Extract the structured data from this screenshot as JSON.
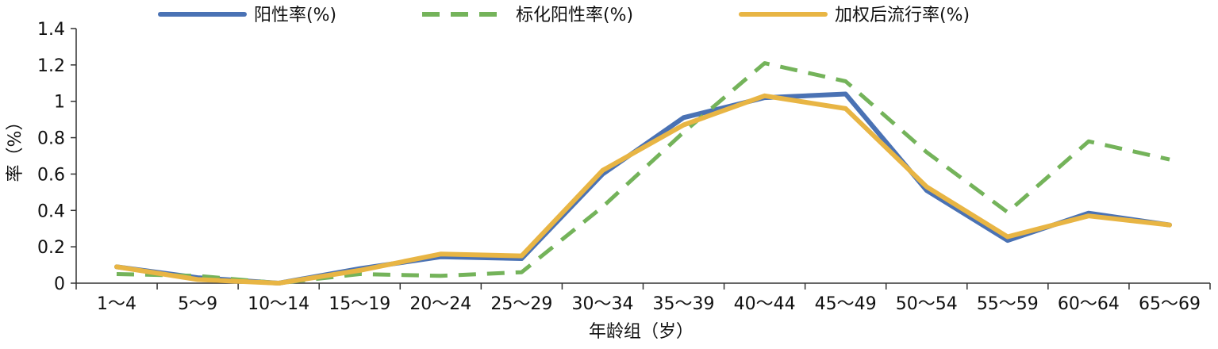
{
  "chart_data": {
    "type": "line",
    "categories": [
      "1～4",
      "5～9",
      "10～14",
      "15～19",
      "20～24",
      "25～29",
      "30～34",
      "35～39",
      "40～44",
      "45～49",
      "50～54",
      "55～59",
      "60～64",
      "65～69"
    ],
    "xlabel": "年龄组（岁）",
    "ylabel": "率（%）",
    "ylim": [
      0,
      1.4
    ],
    "yticks": [
      "0",
      "0.2",
      "0.4",
      "0.6",
      "0.8",
      "1",
      "1.2",
      "1.4"
    ],
    "grid": false,
    "legend_position": "top",
    "series": [
      {
        "name": "阳性率(%)",
        "color": "#4a72b4",
        "dash": "solid",
        "values": [
          0.09,
          0.03,
          0.0,
          0.08,
          0.145,
          0.135,
          0.6,
          0.91,
          1.02,
          1.04,
          0.51,
          0.235,
          0.385,
          0.32
        ]
      },
      {
        "name": "标化阳性率(%)",
        "color": "#74b35a",
        "dash": "dashed",
        "values": [
          0.05,
          0.04,
          0.0,
          0.05,
          0.04,
          0.06,
          0.42,
          0.83,
          1.21,
          1.11,
          0.72,
          0.39,
          0.78,
          0.68
        ]
      },
      {
        "name": "加权后流行率(%)",
        "color": "#e8b544",
        "dash": "solid",
        "values": [
          0.09,
          0.02,
          0.0,
          0.07,
          0.16,
          0.15,
          0.62,
          0.87,
          1.03,
          0.96,
          0.53,
          0.255,
          0.37,
          0.32
        ]
      }
    ]
  }
}
